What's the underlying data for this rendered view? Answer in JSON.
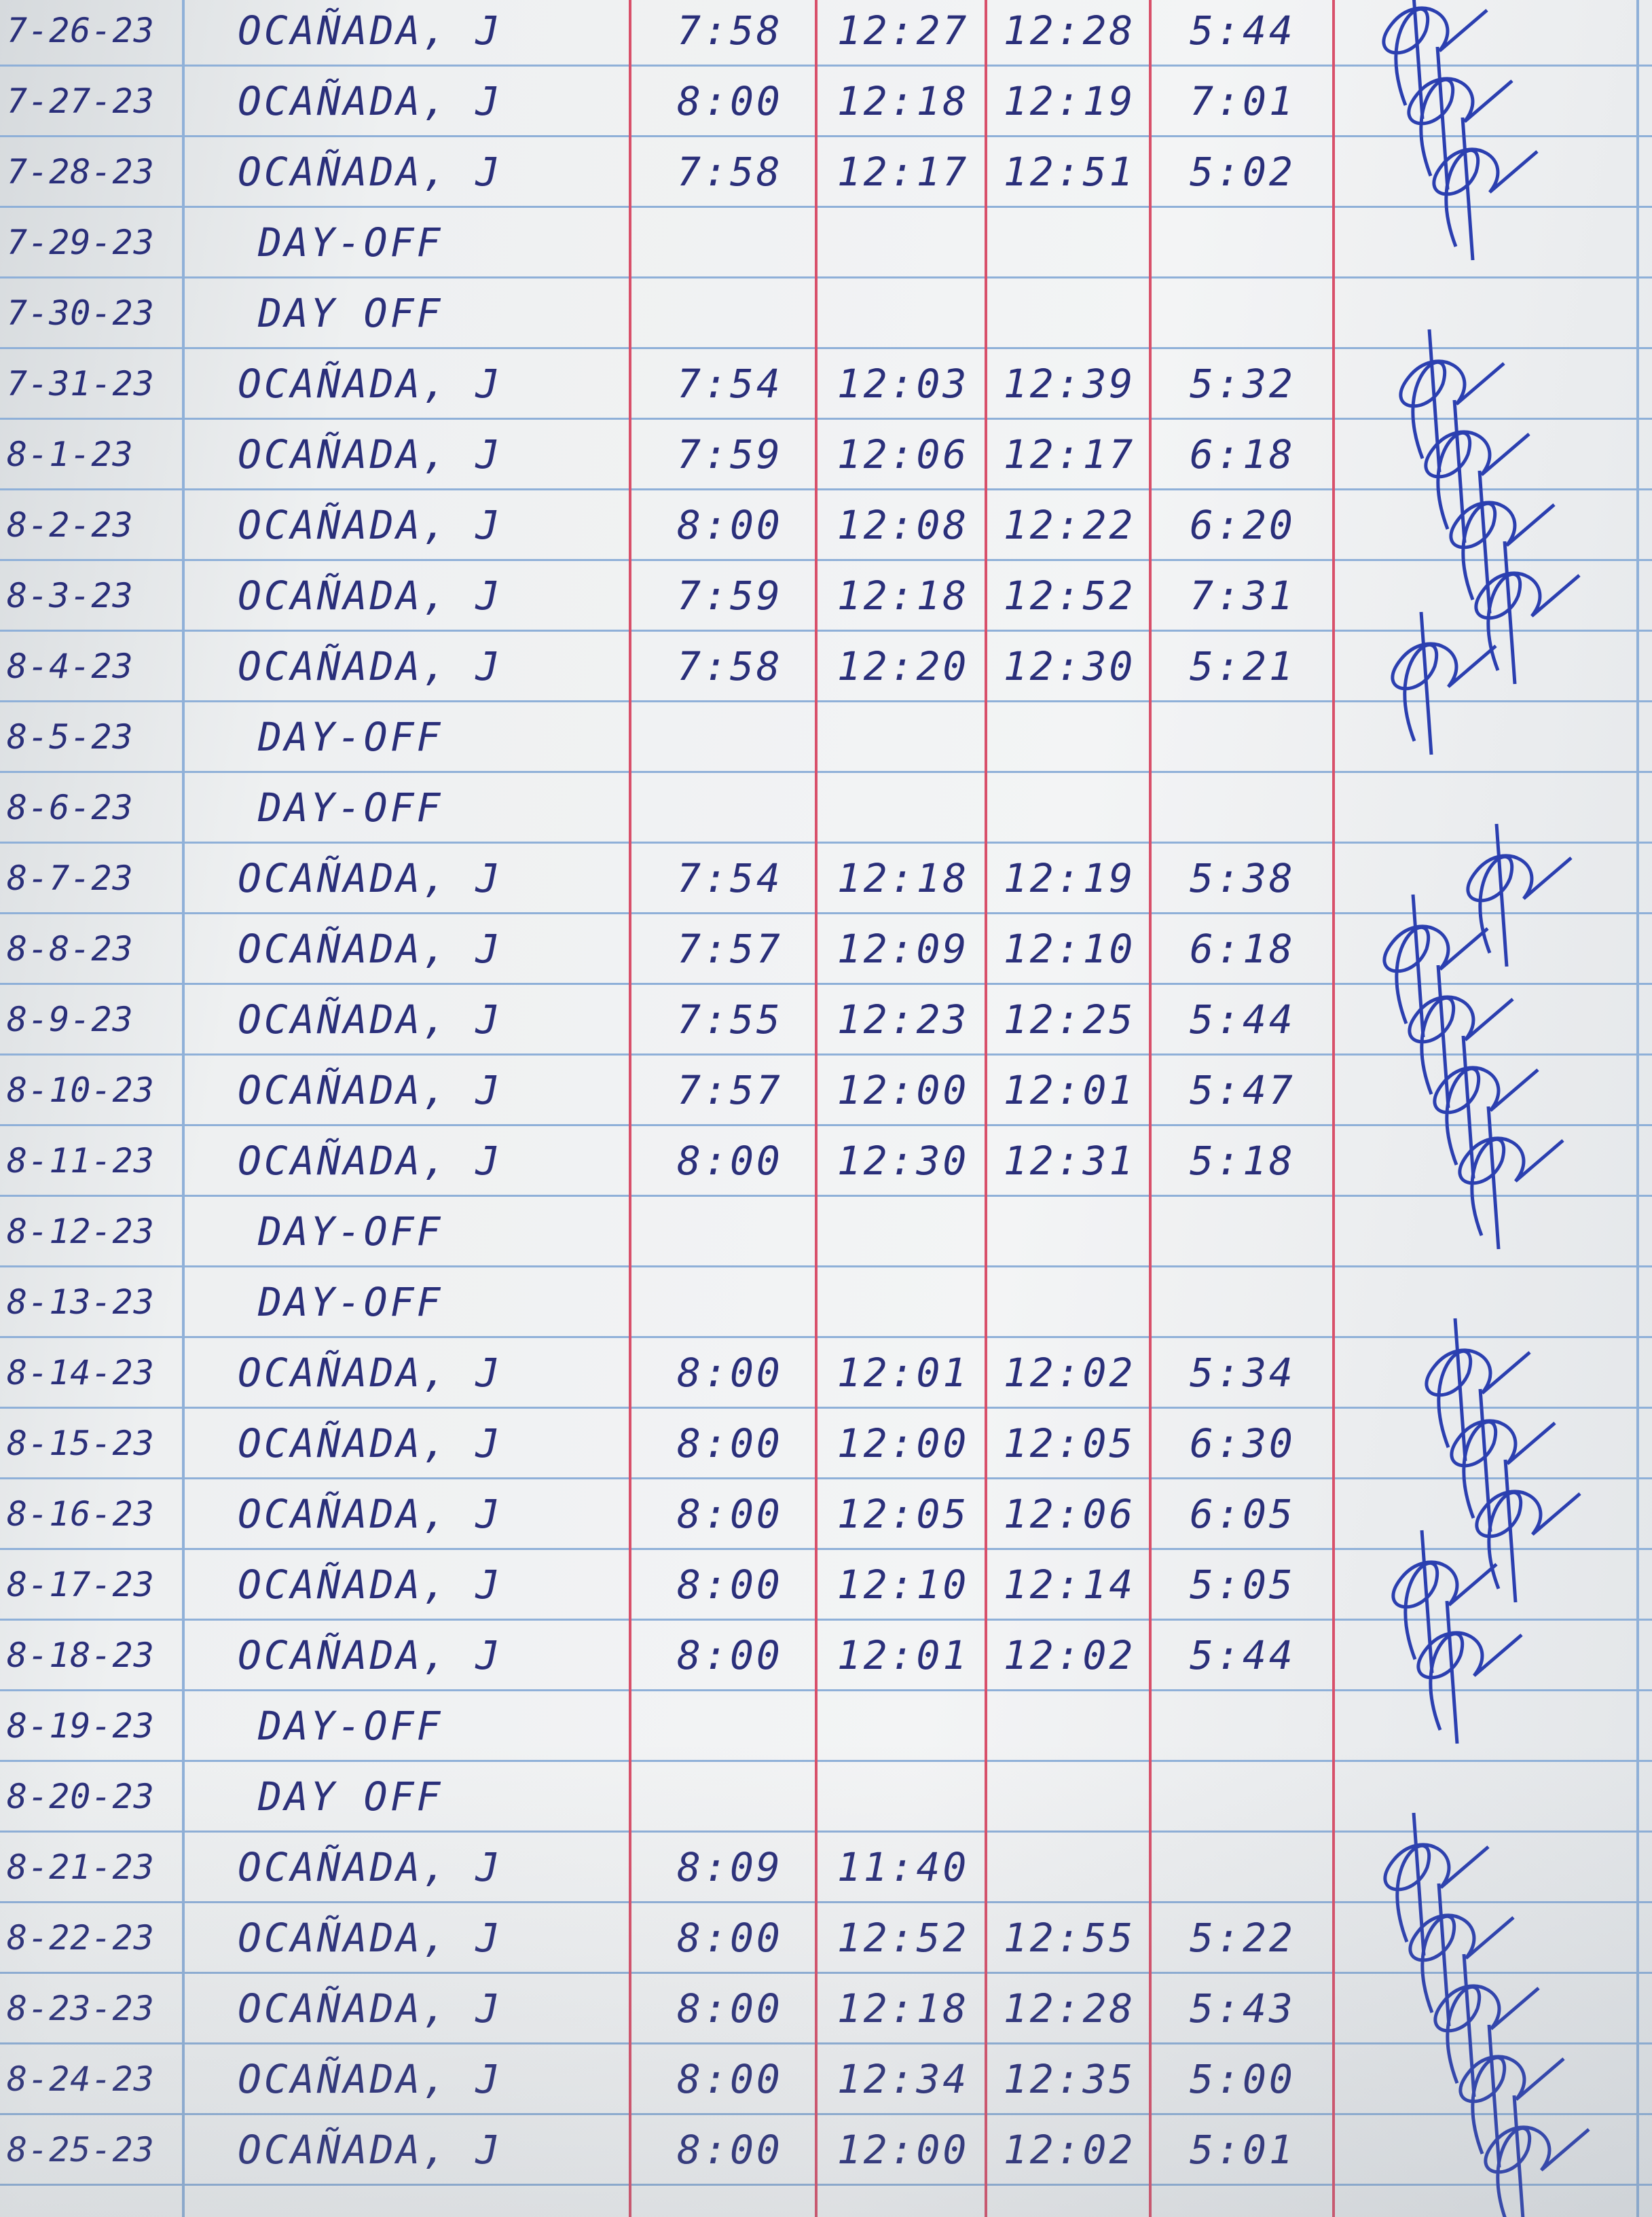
{
  "log": {
    "columns": [
      "date",
      "name",
      "time_in",
      "lunch_out",
      "lunch_in",
      "time_out",
      "signature"
    ],
    "rows": [
      {
        "date": "7-26-23",
        "name": "OCAÑADA, J",
        "in": "7:58",
        "lunch_out": "12:27",
        "lunch_in": "12:28",
        "out": "5:44"
      },
      {
        "date": "7-27-23",
        "name": "OCAÑADA, J",
        "in": "8:00",
        "lunch_out": "12:18",
        "lunch_in": "12:19",
        "out": "7:01"
      },
      {
        "date": "7-28-23",
        "name": "OCAÑADA, J",
        "in": "7:58",
        "lunch_out": "12:17",
        "lunch_in": "12:51",
        "out": "5:02"
      },
      {
        "date": "7-29-23",
        "name": "DAY-OFF",
        "in": "",
        "lunch_out": "",
        "lunch_in": "",
        "out": ""
      },
      {
        "date": "7-30-23",
        "name": "DAY OFF",
        "in": "",
        "lunch_out": "",
        "lunch_in": "",
        "out": ""
      },
      {
        "date": "7-31-23",
        "name": "OCAÑADA, J",
        "in": "7:54",
        "lunch_out": "12:03",
        "lunch_in": "12:39",
        "out": "5:32"
      },
      {
        "date": "8-1-23",
        "name": "OCAÑADA, J",
        "in": "7:59",
        "lunch_out": "12:06",
        "lunch_in": "12:17",
        "out": "6:18"
      },
      {
        "date": "8-2-23",
        "name": "OCAÑADA, J",
        "in": "8:00",
        "lunch_out": "12:08",
        "lunch_in": "12:22",
        "out": "6:20"
      },
      {
        "date": "8-3-23",
        "name": "OCAÑADA, J",
        "in": "7:59",
        "lunch_out": "12:18",
        "lunch_in": "12:52",
        "out": "7:31"
      },
      {
        "date": "8-4-23",
        "name": "OCAÑADA, J",
        "in": "7:58",
        "lunch_out": "12:20",
        "lunch_in": "12:30",
        "out": "5:21"
      },
      {
        "date": "8-5-23",
        "name": "DAY-OFF",
        "in": "",
        "lunch_out": "",
        "lunch_in": "",
        "out": ""
      },
      {
        "date": "8-6-23",
        "name": "DAY-OFF",
        "in": "",
        "lunch_out": "",
        "lunch_in": "",
        "out": ""
      },
      {
        "date": "8-7-23",
        "name": "OCAÑADA, J",
        "in": "7:54",
        "lunch_out": "12:18",
        "lunch_in": "12:19",
        "out": "5:38"
      },
      {
        "date": "8-8-23",
        "name": "OCAÑADA, J",
        "in": "7:57",
        "lunch_out": "12:09",
        "lunch_in": "12:10",
        "out": "6:18"
      },
      {
        "date": "8-9-23",
        "name": "OCAÑADA, J",
        "in": "7:55",
        "lunch_out": "12:23",
        "lunch_in": "12:25",
        "out": "5:44"
      },
      {
        "date": "8-10-23",
        "name": "OCAÑADA, J",
        "in": "7:57",
        "lunch_out": "12:00",
        "lunch_in": "12:01",
        "out": "5:47"
      },
      {
        "date": "8-11-23",
        "name": "OCAÑADA, J",
        "in": "8:00",
        "lunch_out": "12:30",
        "lunch_in": "12:31",
        "out": "5:18"
      },
      {
        "date": "8-12-23",
        "name": "DAY-OFF",
        "in": "",
        "lunch_out": "",
        "lunch_in": "",
        "out": ""
      },
      {
        "date": "8-13-23",
        "name": "DAY-OFF",
        "in": "",
        "lunch_out": "",
        "lunch_in": "",
        "out": ""
      },
      {
        "date": "8-14-23",
        "name": "OCAÑADA, J",
        "in": "8:00",
        "lunch_out": "12:01",
        "lunch_in": "12:02",
        "out": "5:34"
      },
      {
        "date": "8-15-23",
        "name": "OCAÑADA, J",
        "in": "8:00",
        "lunch_out": "12:00",
        "lunch_in": "12:05",
        "out": "6:30"
      },
      {
        "date": "8-16-23",
        "name": "OCAÑADA, J",
        "in": "8:00",
        "lunch_out": "12:05",
        "lunch_in": "12:06",
        "out": "6:05"
      },
      {
        "date": "8-17-23",
        "name": "OCAÑADA, J",
        "in": "8:00",
        "lunch_out": "12:10",
        "lunch_in": "12:14",
        "out": "5:05"
      },
      {
        "date": "8-18-23",
        "name": "OCAÑADA, J",
        "in": "8:00",
        "lunch_out": "12:01",
        "lunch_in": "12:02",
        "out": "5:44"
      },
      {
        "date": "8-19-23",
        "name": "DAY-OFF",
        "in": "",
        "lunch_out": "",
        "lunch_in": "",
        "out": ""
      },
      {
        "date": "8-20-23",
        "name": "DAY OFF",
        "in": "",
        "lunch_out": "",
        "lunch_in": "",
        "out": ""
      },
      {
        "date": "8-21-23",
        "name": "OCAÑADA, J",
        "in": "8:09",
        "lunch_out": "11:40",
        "lunch_in": "",
        "out": ""
      },
      {
        "date": "8-22-23",
        "name": "OCAÑADA, J",
        "in": "8:00",
        "lunch_out": "12:52",
        "lunch_in": "12:55",
        "out": "5:22"
      },
      {
        "date": "8-23-23",
        "name": "OCAÑADA, J",
        "in": "8:00",
        "lunch_out": "12:18",
        "lunch_in": "12:28",
        "out": "5:43"
      },
      {
        "date": "8-24-23",
        "name": "OCAÑADA, J",
        "in": "8:00",
        "lunch_out": "12:34",
        "lunch_in": "12:35",
        "out": "5:00"
      },
      {
        "date": "8-25-23",
        "name": "OCAÑADA, J",
        "in": "8:00",
        "lunch_out": "12:00",
        "lunch_in": "12:02",
        "out": "5:01"
      }
    ]
  },
  "colors": {
    "ink": "#2a2f7a",
    "rule_line": "#8fb0d8",
    "margin_line": "#d8506a",
    "signature_ink": "#2b3fb0"
  }
}
